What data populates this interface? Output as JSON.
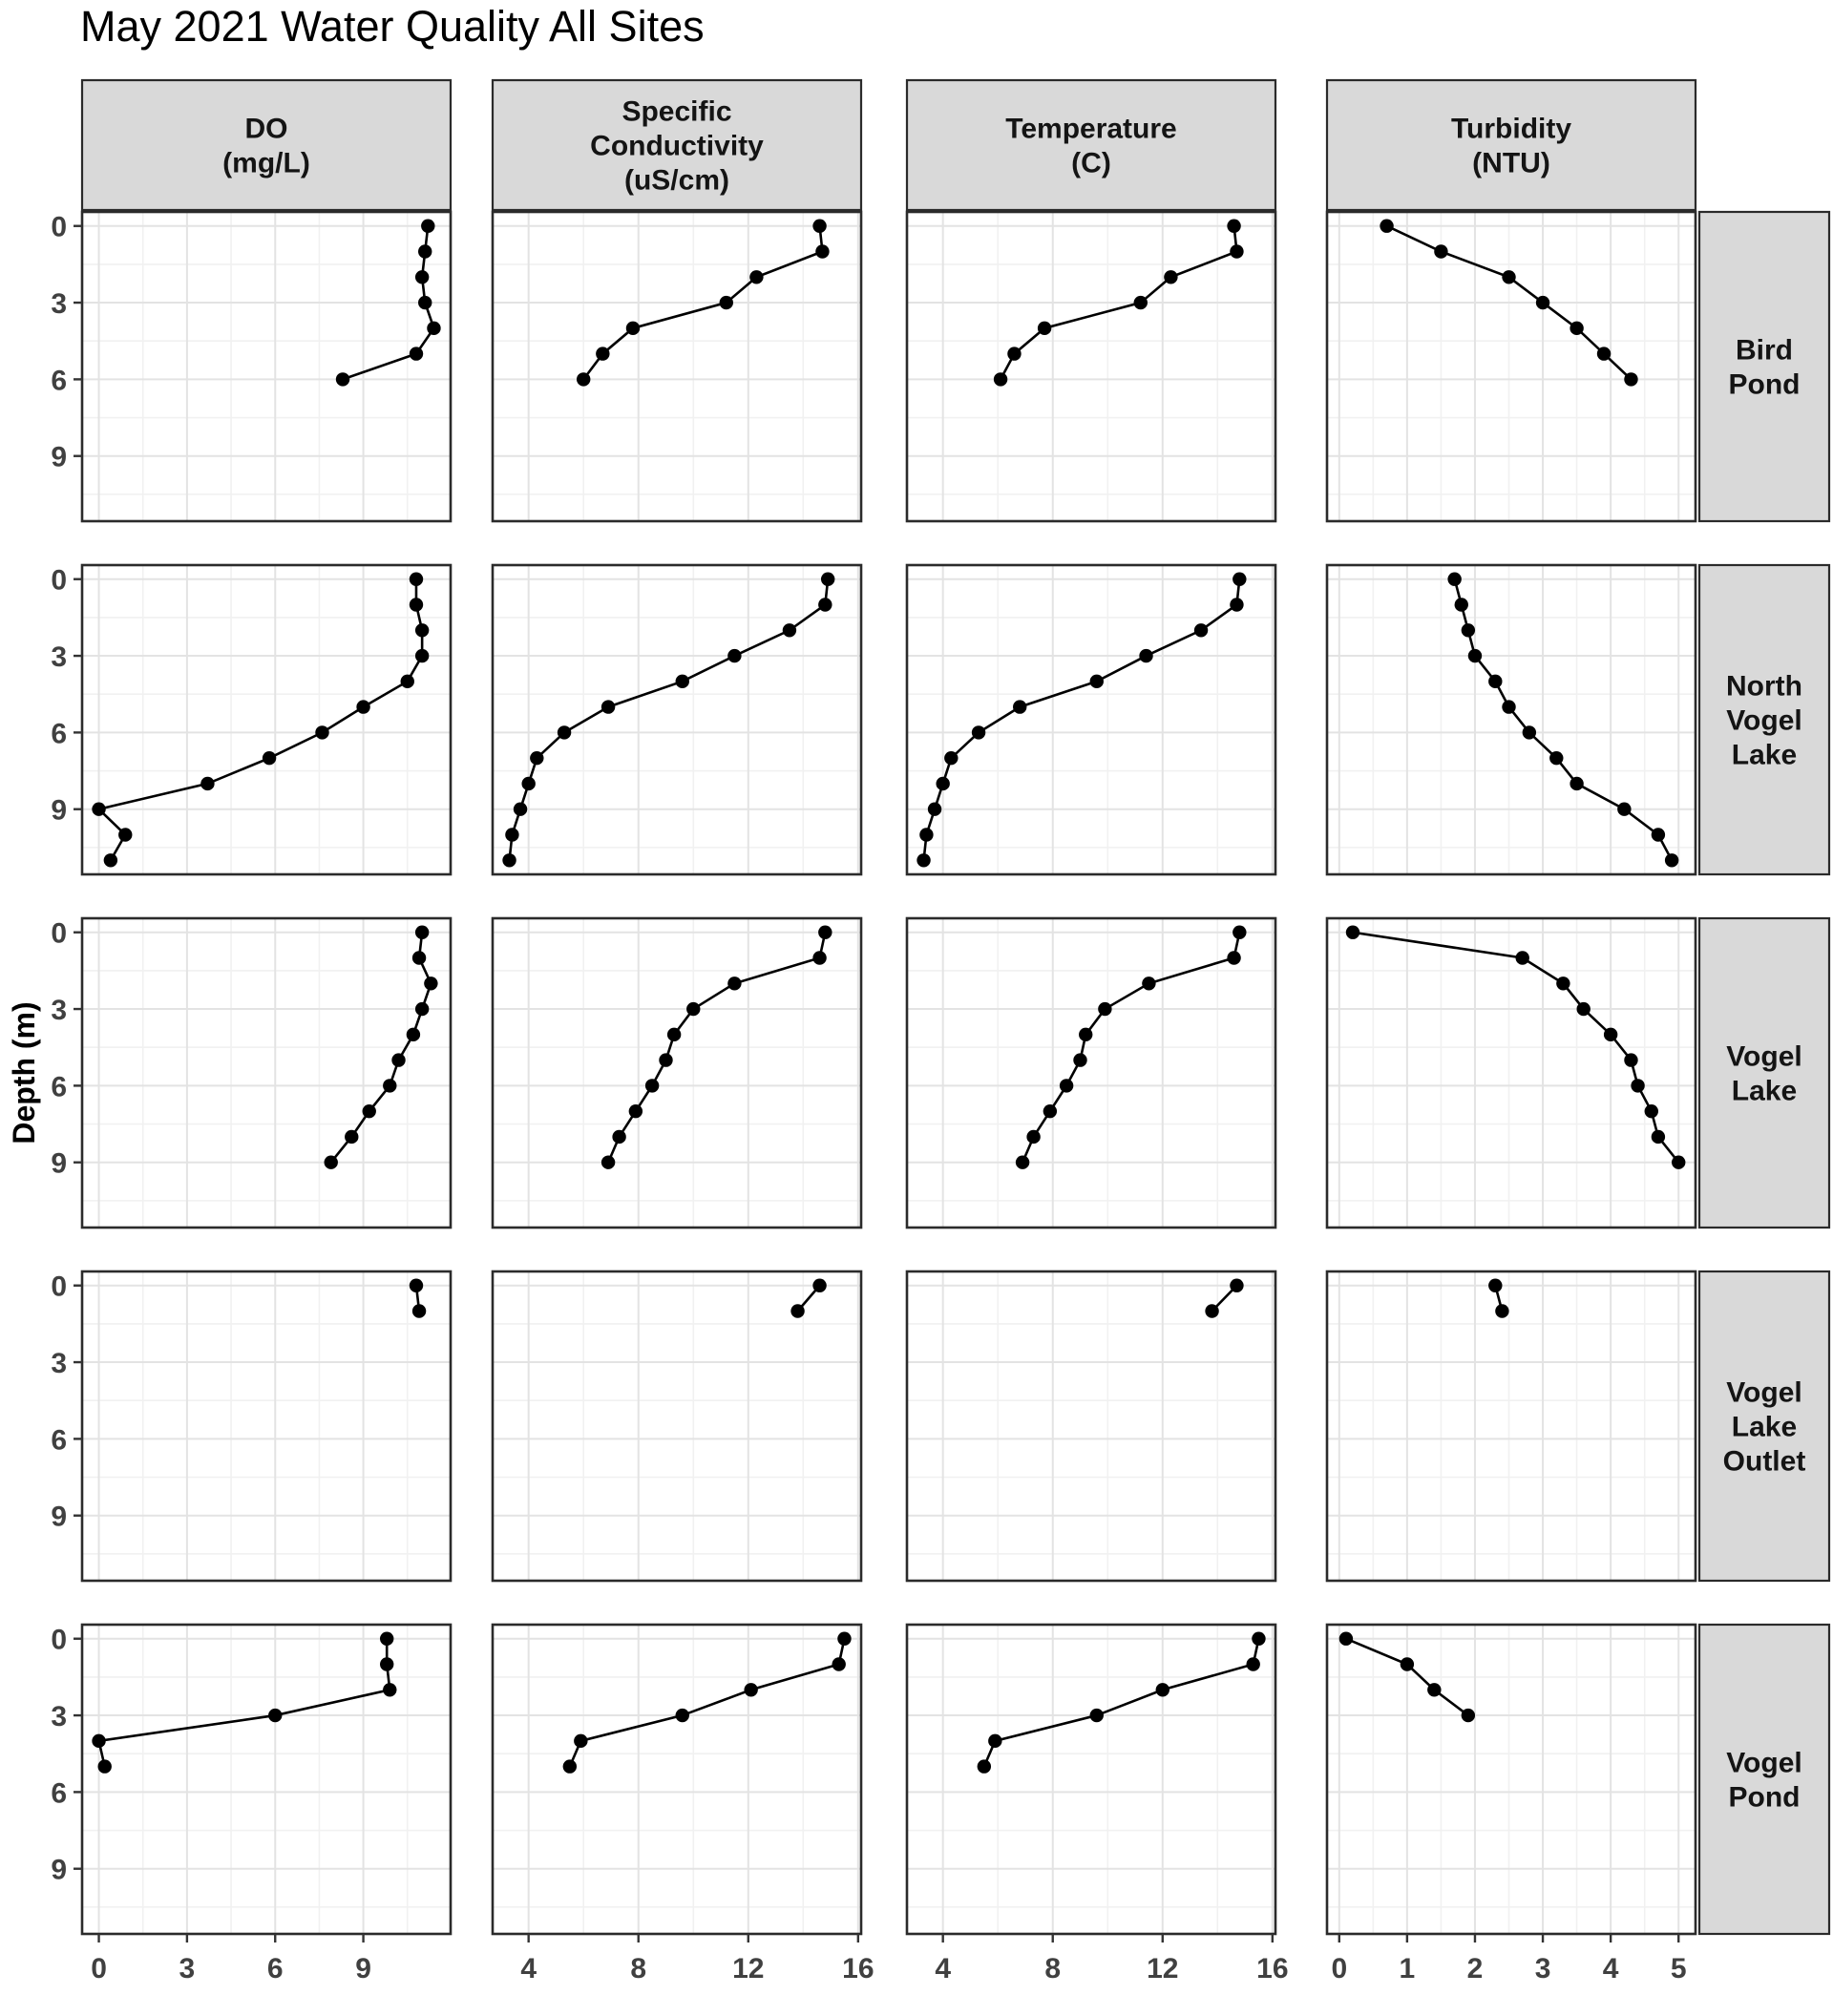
{
  "chart_data": {
    "type": "line",
    "title": "May 2021 Water Quality All Sites",
    "ylabel": "Depth (m)",
    "y_axis": {
      "ticks": [
        0,
        3,
        6,
        9
      ],
      "minor": [
        1.5,
        4.5,
        7.5,
        10.5
      ],
      "range": [
        -0.55,
        11.55
      ],
      "direction": "depth-increases-downward"
    },
    "columns": [
      {
        "key": "do",
        "label": "DO\n(mg/L)",
        "ticks": [
          0,
          3,
          6,
          9
        ],
        "minor": [
          1.5,
          4.5,
          7.5,
          10.5
        ],
        "range": [
          -0.57,
          11.97
        ]
      },
      {
        "key": "spc",
        "label": "Specific\nConductivity\n(uS/cm)",
        "ticks": [
          4,
          8,
          12,
          16
        ],
        "minor": [
          6,
          10,
          14
        ],
        "range": [
          2.69,
          16.11
        ]
      },
      {
        "key": "temp",
        "label": "Temperature\n(C)",
        "ticks": [
          4,
          8,
          12,
          16
        ],
        "minor": [
          6,
          10,
          14
        ],
        "range": [
          2.69,
          16.11
        ]
      },
      {
        "key": "turb",
        "label": "Turbidity\n(NTU)",
        "ticks": [
          0,
          1,
          2,
          3,
          4,
          5
        ],
        "minor": [
          0.5,
          1.5,
          2.5,
          3.5,
          4.5
        ],
        "range": [
          -0.18,
          5.25
        ]
      }
    ],
    "rows": [
      {
        "site": "Bird Pond",
        "strip_label": "Bird\nPond",
        "profiles": {
          "do": [
            [
              0,
              11.2
            ],
            [
              1,
              11.1
            ],
            [
              2,
              11.0
            ],
            [
              3,
              11.1
            ],
            [
              4,
              11.4
            ],
            [
              5,
              10.8
            ],
            [
              6,
              8.3
            ]
          ],
          "spc": [
            [
              0,
              14.6
            ],
            [
              1,
              14.7
            ],
            [
              2,
              12.3
            ],
            [
              3,
              11.2
            ],
            [
              4,
              7.8
            ],
            [
              5,
              6.7
            ],
            [
              6,
              6.0
            ]
          ],
          "temp": [
            [
              0,
              14.6
            ],
            [
              1,
              14.7
            ],
            [
              2,
              12.3
            ],
            [
              3,
              11.2
            ],
            [
              4,
              7.7
            ],
            [
              5,
              6.6
            ],
            [
              6,
              6.1
            ]
          ],
          "turb": [
            [
              0,
              0.7
            ],
            [
              1,
              1.5
            ],
            [
              2,
              2.5
            ],
            [
              3,
              3.0
            ],
            [
              4,
              3.5
            ],
            [
              5,
              3.9
            ],
            [
              6,
              4.3
            ]
          ]
        }
      },
      {
        "site": "North Vogel Lake",
        "strip_label": "North\nVogel\nLake",
        "profiles": {
          "do": [
            [
              0,
              10.8
            ],
            [
              1,
              10.8
            ],
            [
              2,
              11.0
            ],
            [
              3,
              11.0
            ],
            [
              4,
              10.5
            ],
            [
              5,
              9.0
            ],
            [
              6,
              7.6
            ],
            [
              7,
              5.8
            ],
            [
              8,
              3.7
            ],
            [
              9,
              0.0
            ],
            [
              10,
              0.9
            ],
            [
              11,
              0.4
            ]
          ],
          "spc": [
            [
              0,
              14.9
            ],
            [
              1,
              14.8
            ],
            [
              2,
              13.5
            ],
            [
              3,
              11.5
            ],
            [
              4,
              9.6
            ],
            [
              5,
              6.9
            ],
            [
              6,
              5.3
            ],
            [
              7,
              4.3
            ],
            [
              8,
              4.0
            ],
            [
              9,
              3.7
            ],
            [
              10,
              3.4
            ],
            [
              11,
              3.3
            ]
          ],
          "temp": [
            [
              0,
              14.8
            ],
            [
              1,
              14.7
            ],
            [
              2,
              13.4
            ],
            [
              3,
              11.4
            ],
            [
              4,
              9.6
            ],
            [
              5,
              6.8
            ],
            [
              6,
              5.3
            ],
            [
              7,
              4.3
            ],
            [
              8,
              4.0
            ],
            [
              9,
              3.7
            ],
            [
              10,
              3.4
            ],
            [
              11,
              3.3
            ]
          ],
          "turb": [
            [
              0,
              1.7
            ],
            [
              1,
              1.8
            ],
            [
              2,
              1.9
            ],
            [
              3,
              2.0
            ],
            [
              4,
              2.3
            ],
            [
              5,
              2.5
            ],
            [
              6,
              2.8
            ],
            [
              7,
              3.2
            ],
            [
              8,
              3.5
            ],
            [
              9,
              4.2
            ],
            [
              10,
              4.7
            ],
            [
              11,
              4.9
            ]
          ]
        }
      },
      {
        "site": "Vogel Lake",
        "strip_label": "Vogel\nLake",
        "profiles": {
          "do": [
            [
              0,
              11.0
            ],
            [
              1,
              10.9
            ],
            [
              2,
              11.3
            ],
            [
              3,
              11.0
            ],
            [
              4,
              10.7
            ],
            [
              5,
              10.2
            ],
            [
              6,
              9.9
            ],
            [
              7,
              9.2
            ],
            [
              8,
              8.6
            ],
            [
              9,
              7.9
            ]
          ],
          "spc": [
            [
              0,
              14.8
            ],
            [
              1,
              14.6
            ],
            [
              2,
              11.5
            ],
            [
              3,
              10.0
            ],
            [
              4,
              9.3
            ],
            [
              5,
              9.0
            ],
            [
              6,
              8.5
            ],
            [
              7,
              7.9
            ],
            [
              8,
              7.3
            ],
            [
              9,
              6.9
            ]
          ],
          "temp": [
            [
              0,
              14.8
            ],
            [
              1,
              14.6
            ],
            [
              2,
              11.5
            ],
            [
              3,
              9.9
            ],
            [
              4,
              9.2
            ],
            [
              5,
              9.0
            ],
            [
              6,
              8.5
            ],
            [
              7,
              7.9
            ],
            [
              8,
              7.3
            ],
            [
              9,
              6.9
            ]
          ],
          "turb": [
            [
              0,
              0.2
            ],
            [
              1,
              2.7
            ],
            [
              2,
              3.3
            ],
            [
              3,
              3.6
            ],
            [
              4,
              4.0
            ],
            [
              5,
              4.3
            ],
            [
              6,
              4.4
            ],
            [
              7,
              4.6
            ],
            [
              8,
              4.7
            ],
            [
              9,
              5.0
            ]
          ]
        }
      },
      {
        "site": "Vogel Lake Outlet",
        "strip_label": "Vogel\nLake\nOutlet",
        "profiles": {
          "do": [
            [
              0,
              10.8
            ],
            [
              1,
              10.9
            ]
          ],
          "spc": [
            [
              0,
              14.6
            ],
            [
              1,
              13.8
            ]
          ],
          "temp": [
            [
              0,
              14.7
            ],
            [
              1,
              13.8
            ]
          ],
          "turb": [
            [
              0,
              2.3
            ],
            [
              1,
              2.4
            ]
          ]
        }
      },
      {
        "site": "Vogel Pond",
        "strip_label": "Vogel\nPond",
        "profiles": {
          "do": [
            [
              0,
              9.8
            ],
            [
              1,
              9.8
            ],
            [
              2,
              9.9
            ],
            [
              3,
              6.0
            ],
            [
              4,
              0.0
            ],
            [
              5,
              0.2
            ]
          ],
          "spc": [
            [
              0,
              15.5
            ],
            [
              1,
              15.3
            ],
            [
              2,
              12.1
            ],
            [
              3,
              9.6
            ],
            [
              4,
              5.9
            ],
            [
              5,
              5.5
            ]
          ],
          "temp": [
            [
              0,
              15.5
            ],
            [
              1,
              15.3
            ],
            [
              2,
              12.0
            ],
            [
              3,
              9.6
            ],
            [
              4,
              5.9
            ],
            [
              5,
              5.5
            ]
          ],
          "turb": [
            [
              0,
              0.1
            ],
            [
              1,
              1.0
            ],
            [
              2,
              1.4
            ],
            [
              3,
              1.9
            ]
          ]
        }
      }
    ],
    "style": {
      "point_color": "#000000",
      "line_color": "#000000",
      "strip_fill": "#d9d9d9",
      "panel_border": "#2b2b2b",
      "grid_major": "#e3e3e3",
      "grid_minor": "#f1f1f1",
      "tick_label_color": "#404040",
      "strip_text_color": "#141414"
    }
  }
}
